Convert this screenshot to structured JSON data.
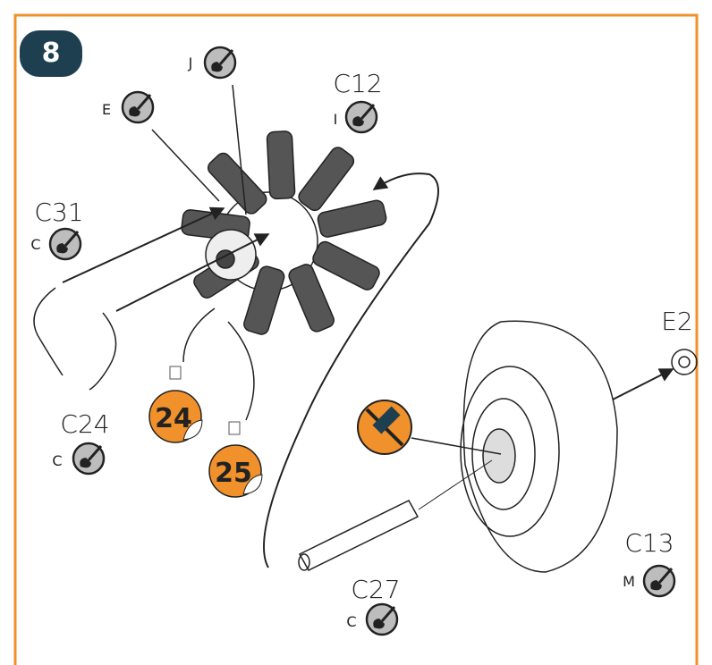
{
  "step": "8",
  "parts": [
    {
      "label": "C12",
      "paint": "I"
    },
    {
      "label": "C31",
      "paint": "C"
    },
    {
      "label": "C24",
      "paint": "C"
    },
    {
      "label": "E2"
    },
    {
      "label": "C13",
      "paint": "M"
    },
    {
      "label": "C27",
      "paint": "C"
    }
  ],
  "paint_callouts": [
    {
      "code": "J"
    },
    {
      "code": "E"
    }
  ],
  "decals": [
    "24",
    "25"
  ]
}
